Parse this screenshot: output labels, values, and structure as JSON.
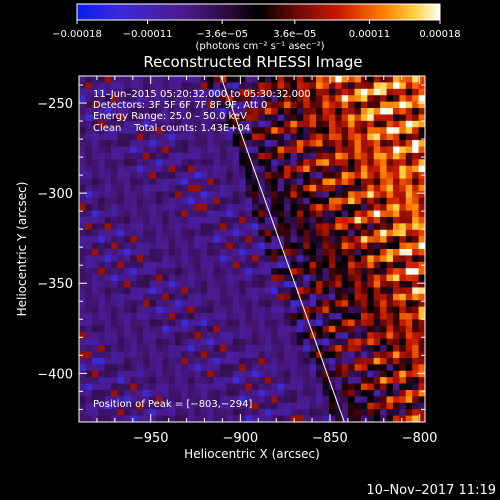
{
  "chart_data": {
    "type": "heatmap",
    "title": "Reconstructed RHESSI Image",
    "xlabel": "Heliocentric X (arcsec)",
    "ylabel": "Heliocentric Y (arcsec)",
    "xlim": [
      -990,
      -797
    ],
    "ylim": [
      -427,
      -235
    ],
    "xticks": [
      -950,
      -900,
      -850,
      -800
    ],
    "xtick_labels": [
      "−950",
      "−900",
      "−850",
      "−800"
    ],
    "yticks": [
      -250,
      -300,
      -350,
      -400
    ],
    "ytick_labels": [
      "−250",
      "−300",
      "−350",
      "−400"
    ],
    "colorbar": {
      "range": [
        -0.00018,
        0.00018
      ],
      "ticks": [
        -0.00018,
        -0.00011,
        -3.6e-05,
        3.6e-05,
        0.00011,
        0.00018
      ],
      "tick_labels": [
        "−0.00018",
        "−0.00011",
        "−3.6e−05",
        "3.6e−05",
        "0.00011",
        "0.00018"
      ],
      "unit_label": "(photons cm⁻² s⁻¹ asec⁻²)"
    },
    "annotations": [
      "11–Jun–2015 05:20:32.000 to 05:30:32.000",
      "Detectors: 3F 5F 6F 7F 8F 9F, Att 0",
      "Energy Range: 25.0 – 50.0 keV",
      "Clean    Total counts: 1.43E+04"
    ],
    "peak_text": "Position of Peak = [−803,−294]",
    "limb_line": {
      "x_start": -911,
      "y_start": -235,
      "x_end": -842,
      "y_end": -427
    },
    "timestamp": "10–Nov–2017 11:19"
  }
}
